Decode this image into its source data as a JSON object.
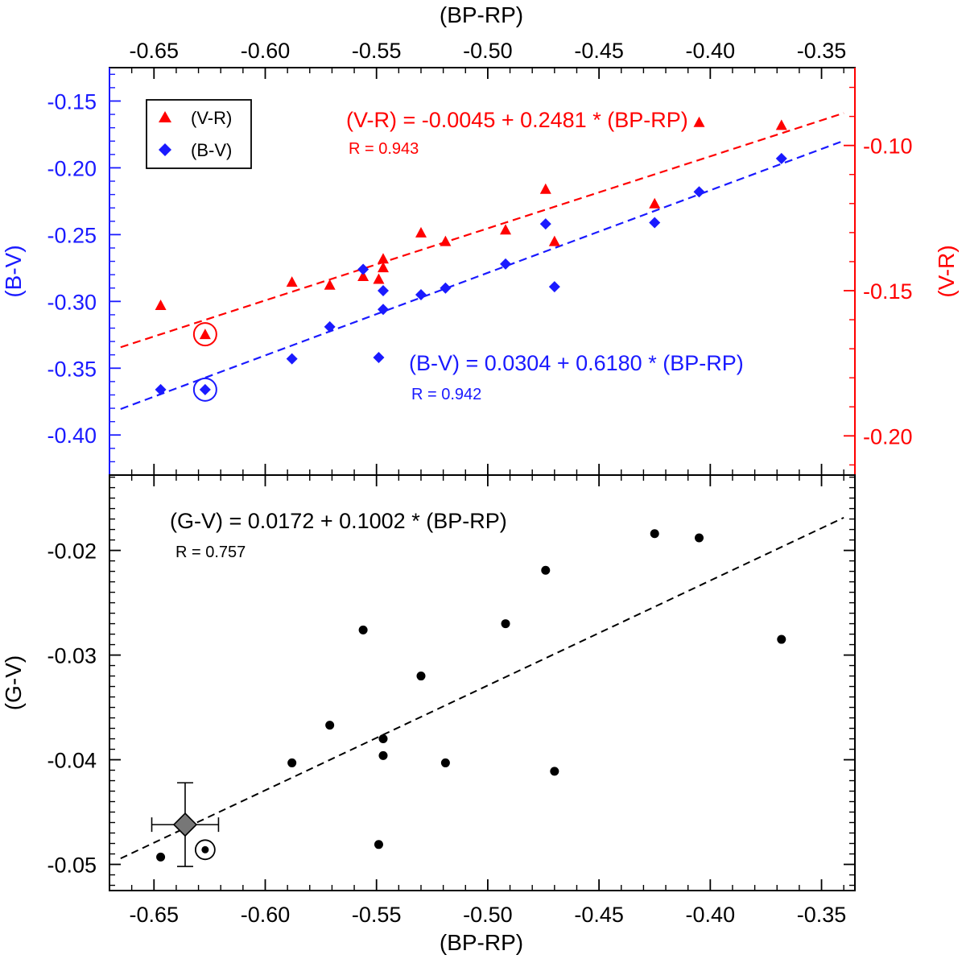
{
  "colors": {
    "bv": "#1a1aff",
    "vr": "#ff0000",
    "gv": "#000000",
    "sun": "#777777"
  },
  "chart_data": [
    {
      "type": "scatter",
      "panel": "top",
      "x_axis_title": "(BP-RP)",
      "x_ticks": [
        "-0.65",
        "-0.60",
        "-0.55",
        "-0.50",
        "-0.45",
        "-0.40",
        "-0.35"
      ],
      "x_tick_values": [
        -0.65,
        -0.6,
        -0.55,
        -0.5,
        -0.45,
        -0.4,
        -0.35
      ],
      "xlim": [
        -0.67,
        -0.335
      ],
      "ylabel_left": "(B-V)",
      "ylim_left": [
        -0.43,
        -0.125
      ],
      "y_ticks_left": [
        "-0.15",
        "-0.20",
        "-0.25",
        "-0.30",
        "-0.35",
        "-0.40"
      ],
      "y_tick_values_left": [
        -0.15,
        -0.2,
        -0.25,
        -0.3,
        -0.35,
        -0.4
      ],
      "ylabel_right": "(V-R)",
      "ylim_right": [
        -0.2135,
        -0.0732
      ],
      "y_ticks_right": [
        "-0.10",
        "-0.15",
        "-0.20"
      ],
      "y_tick_values_right": [
        -0.1,
        -0.15,
        -0.2
      ],
      "legend": {
        "placement": "top-left",
        "entries": [
          {
            "label": "(V-R)",
            "series": "vr"
          },
          {
            "label": "(B-V)",
            "series": "bv"
          }
        ]
      },
      "series": [
        {
          "key": "vr",
          "name": "(V-R)",
          "axis": "right",
          "marker": "triangle",
          "x": [
            -0.647,
            -0.627,
            -0.588,
            -0.571,
            -0.556,
            -0.549,
            -0.547,
            -0.547,
            -0.53,
            -0.519,
            -0.492,
            -0.474,
            -0.47,
            -0.425,
            -0.405,
            -0.368
          ],
          "y": [
            -0.155,
            -0.165,
            -0.147,
            -0.148,
            -0.145,
            -0.146,
            -0.142,
            -0.139,
            -0.13,
            -0.133,
            -0.129,
            -0.115,
            -0.133,
            -0.12,
            -0.092,
            -0.093
          ]
        },
        {
          "key": "bv",
          "name": "(B-V)",
          "axis": "left",
          "marker": "diamond",
          "x": [
            -0.647,
            -0.627,
            -0.588,
            -0.571,
            -0.556,
            -0.549,
            -0.547,
            -0.547,
            -0.53,
            -0.519,
            -0.492,
            -0.474,
            -0.47,
            -0.425,
            -0.405,
            -0.368
          ],
          "y": [
            -0.366,
            -0.366,
            -0.343,
            -0.319,
            -0.276,
            -0.342,
            -0.306,
            -0.292,
            -0.295,
            -0.29,
            -0.272,
            -0.242,
            -0.289,
            -0.241,
            -0.218,
            -0.193
          ]
        }
      ],
      "fits": [
        {
          "series": "vr",
          "axis": "right",
          "intercept": -0.0045,
          "slope": 0.2481,
          "x_range": [
            -0.665,
            -0.34
          ],
          "equation": "(V-R) = -0.0045 + 0.2481 * (BP-RP)",
          "r_text": "R = 0.943"
        },
        {
          "series": "bv",
          "axis": "left",
          "intercept": 0.0304,
          "slope": 0.618,
          "x_range": [
            -0.665,
            -0.34
          ],
          "equation": "(B-V) = 0.0304 + 0.6180 * (BP-RP)",
          "r_text": "R = 0.942"
        }
      ],
      "sun": {
        "x": -0.627,
        "bv": -0.366,
        "vr": -0.165
      }
    },
    {
      "type": "scatter",
      "panel": "bottom",
      "xlabel": "(BP-RP)",
      "x_ticks": [
        "-0.65",
        "-0.60",
        "-0.55",
        "-0.50",
        "-0.45",
        "-0.40",
        "-0.35"
      ],
      "x_tick_values": [
        -0.65,
        -0.6,
        -0.55,
        -0.5,
        -0.45,
        -0.4,
        -0.35
      ],
      "xlim": [
        -0.67,
        -0.335
      ],
      "ylabel": "(G-V)",
      "ylim": [
        -0.0525,
        -0.0128
      ],
      "y_ticks": [
        "-0.02",
        "-0.03",
        "-0.04",
        "-0.05"
      ],
      "y_tick_values": [
        -0.02,
        -0.03,
        -0.04,
        -0.05
      ],
      "series": [
        {
          "key": "gv",
          "name": "(G-V)",
          "marker": "circle",
          "x": [
            -0.647,
            -0.588,
            -0.571,
            -0.556,
            -0.549,
            -0.547,
            -0.547,
            -0.53,
            -0.519,
            -0.492,
            -0.474,
            -0.47,
            -0.425,
            -0.405,
            -0.368
          ],
          "y": [
            -0.0493,
            -0.0403,
            -0.0367,
            -0.0276,
            -0.0481,
            -0.038,
            -0.0396,
            -0.032,
            -0.0403,
            -0.027,
            -0.0219,
            -0.0411,
            -0.0184,
            -0.0188,
            -0.0285
          ]
        }
      ],
      "fit": {
        "intercept": 0.0172,
        "slope": 0.1002,
        "x_range": [
          -0.665,
          -0.34
        ],
        "equation": "(G-V) = 0.0172 + 0.1002 * (BP-RP)",
        "r_text": "R = 0.757"
      },
      "sun": {
        "x": -0.627,
        "y": -0.0486
      },
      "reference_point": {
        "x": -0.636,
        "y": -0.0462,
        "x_err": 0.015,
        "y_err": 0.004
      }
    }
  ]
}
